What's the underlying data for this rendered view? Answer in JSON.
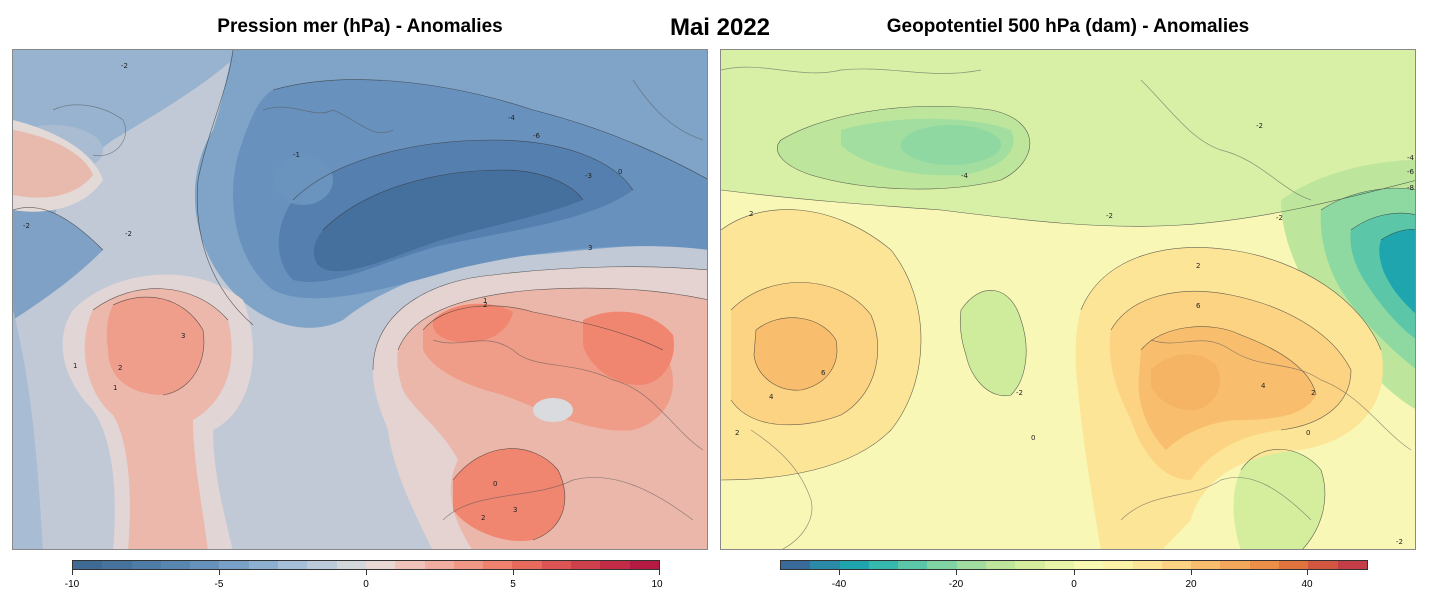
{
  "header": {
    "left_title": "Pression mer (hPa) - Anomalies",
    "month": "Mai 2022",
    "right_title": "Geopotentiel 500 hPa (dam) - Anomalies"
  },
  "left_map": {
    "contour_labels": [
      "-2",
      "-2",
      "-4",
      "-6",
      "-3",
      "-1",
      "0",
      "-2",
      "1",
      "2",
      "3",
      "1",
      "2",
      "3",
      "1",
      "0",
      "3",
      "2"
    ],
    "colorbar": {
      "ticks": [
        "-10",
        "-5",
        "0",
        "5",
        "10"
      ],
      "colors": [
        "#3f6a94",
        "#46729c",
        "#4f7ca6",
        "#5886b0",
        "#6691bb",
        "#79a0c6",
        "#8eb0d0",
        "#a5bfd8",
        "#bccbd9",
        "#d3d6db",
        "#e9d8d4",
        "#efc3ba",
        "#f1ad9f",
        "#f19785",
        "#ef816e",
        "#e76a5d",
        "#dc5554",
        "#cf404d",
        "#c22c47",
        "#b41a42"
      ]
    }
  },
  "right_map": {
    "contour_labels": [
      "-2",
      "-4",
      "-2",
      "-2",
      "-4",
      "-6",
      "-8",
      "2",
      "4",
      "6",
      "2",
      "-2",
      "0",
      "2",
      "4",
      "6",
      "0",
      "2",
      "-2"
    ],
    "colorbar": {
      "ticks": [
        "-40",
        "-20",
        "0",
        "20",
        "40"
      ],
      "colors": [
        "#3a6a9a",
        "#2b8aa8",
        "#1ea5ad",
        "#35b8ad",
        "#5cc6a8",
        "#80d3a3",
        "#a1dd9f",
        "#bde69c",
        "#d4ee9e",
        "#e8f5a6",
        "#f7f9b2",
        "#fdf3a8",
        "#fde597",
        "#fcd382",
        "#f8be6e",
        "#f3a75b",
        "#ec8f48",
        "#e1743c",
        "#d35740",
        "#c53e47"
      ]
    }
  }
}
